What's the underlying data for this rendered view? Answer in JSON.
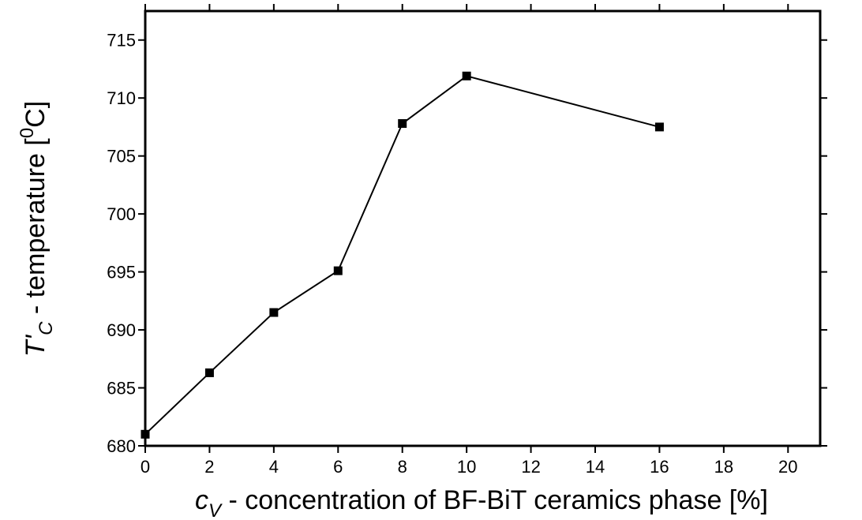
{
  "chart_data": {
    "type": "line",
    "x": [
      0,
      2,
      4,
      6,
      8,
      10,
      16
    ],
    "series": [
      {
        "color": "#000000",
        "values": [
          681,
          686.3,
          691.5,
          695.1,
          707.8,
          711.9,
          707.5
        ]
      }
    ],
    "xlim": [
      0,
      21
    ],
    "xticks": [
      0,
      2,
      4,
      6,
      8,
      10,
      12,
      14,
      16,
      18,
      20
    ],
    "ylim": [
      680,
      717.5
    ],
    "yticks": [
      680,
      685,
      690,
      695,
      700,
      705,
      710,
      715
    ],
    "xlabel": {
      "symbol": "c",
      "subscript": "V",
      "text": " - concentration of BF-BiT ceramics phase  [%]"
    },
    "ylabel": {
      "symbol": "T'",
      "subscript": "C",
      "text": " - temperature [",
      "superscript": "0",
      "unit": "C]"
    },
    "grid": false
  }
}
